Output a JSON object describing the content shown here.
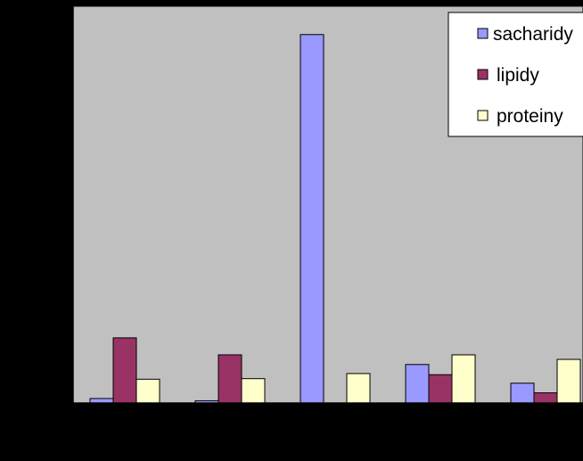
{
  "chart_data": {
    "type": "bar",
    "categories": [
      "",
      "",
      "",
      "",
      ""
    ],
    "series": [
      {
        "name": "sacharidy",
        "color": "#9999FF",
        "values": [
          0.8,
          0.4,
          65,
          6.8,
          3.5
        ]
      },
      {
        "name": "lipidy",
        "color": "#993366",
        "values": [
          11.5,
          8.5,
          0,
          5.0,
          1.8
        ]
      },
      {
        "name": "proteiny",
        "color": "#FFFFCC",
        "values": [
          4.2,
          4.3,
          5.2,
          8.5,
          7.7
        ]
      }
    ],
    "title": "",
    "xlabel": "",
    "ylabel": "",
    "ylim": [
      0,
      70
    ],
    "y_tick_step": 10,
    "grid": false,
    "plot_background": "#C0C0C0",
    "legend_position": "top-right"
  }
}
